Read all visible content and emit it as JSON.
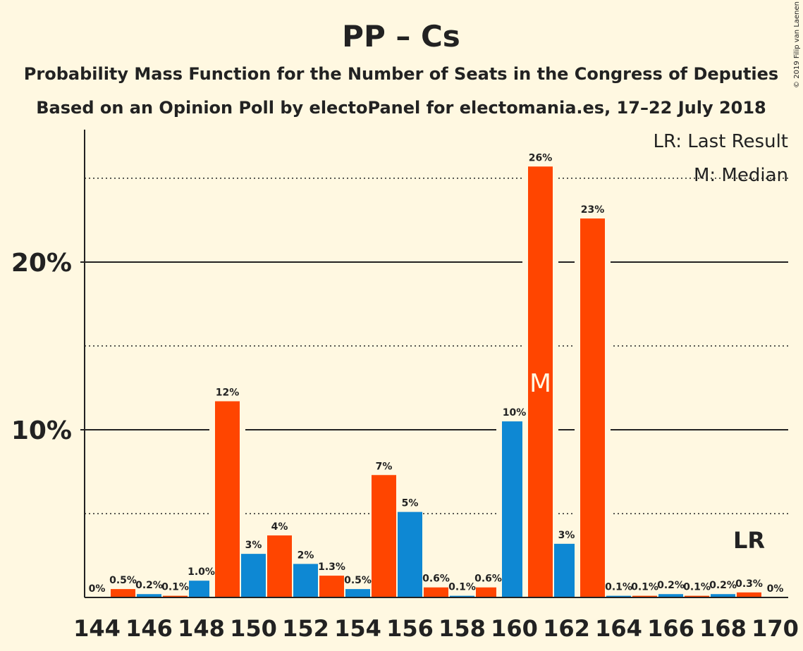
{
  "chart_data": {
    "type": "bar",
    "title": "PP – Cs",
    "subtitle1": "Probability Mass Function for the Number of Seats in the Congress of Deputies",
    "subtitle2": "Based on an Opinion Poll by electoPanel for electomania.es, 17–22 July 2018",
    "copyright": "© 2019 Filip van Laenen",
    "legend": {
      "lr": "LR: Last Result",
      "median": "M: Median"
    },
    "yticks": [
      {
        "value": 10,
        "label": "10%"
      },
      {
        "value": 20,
        "label": "20%"
      }
    ],
    "dotted_gridlines": [
      5,
      15,
      25
    ],
    "ylim": [
      0,
      28
    ],
    "xticks": [
      144,
      146,
      148,
      150,
      152,
      154,
      156,
      158,
      160,
      162,
      164,
      166,
      168,
      170
    ],
    "median_seat": 161,
    "median_label": "M",
    "last_result_seat": 169,
    "last_result_label": "LR",
    "colors": {
      "blue": "#0e88d3",
      "orange": "#ff4500",
      "background": "#fff8e1"
    },
    "bars": [
      {
        "x": 144,
        "value": 0.0,
        "label": "0%"
      },
      {
        "x": 145,
        "value": 0.5,
        "label": "0.5%"
      },
      {
        "x": 146,
        "value": 0.2,
        "label": "0.2%"
      },
      {
        "x": 147,
        "value": 0.1,
        "label": "0.1%"
      },
      {
        "x": 148,
        "value": 1.0,
        "label": "1.0%"
      },
      {
        "x": 149,
        "value": 11.7,
        "label": "12%"
      },
      {
        "x": 150,
        "value": 2.6,
        "label": "3%"
      },
      {
        "x": 151,
        "value": 3.7,
        "label": "4%"
      },
      {
        "x": 152,
        "value": 2.0,
        "label": "2%"
      },
      {
        "x": 153,
        "value": 1.3,
        "label": "1.3%"
      },
      {
        "x": 154,
        "value": 0.5,
        "label": "0.5%"
      },
      {
        "x": 155,
        "value": 7.3,
        "label": "7%"
      },
      {
        "x": 156,
        "value": 5.1,
        "label": "5%"
      },
      {
        "x": 157,
        "value": 0.6,
        "label": "0.6%"
      },
      {
        "x": 158,
        "value": 0.1,
        "label": "0.1%"
      },
      {
        "x": 159,
        "value": 0.6,
        "label": "0.6%"
      },
      {
        "x": 160,
        "value": 10.5,
        "label": "10%"
      },
      {
        "x": 161,
        "value": 25.7,
        "label": "26%"
      },
      {
        "x": 162,
        "value": 3.2,
        "label": "3%"
      },
      {
        "x": 163,
        "value": 22.6,
        "label": "23%"
      },
      {
        "x": 164,
        "value": 0.1,
        "label": "0.1%"
      },
      {
        "x": 165,
        "value": 0.1,
        "label": "0.1%"
      },
      {
        "x": 166,
        "value": 0.2,
        "label": "0.2%"
      },
      {
        "x": 167,
        "value": 0.1,
        "label": "0.1%"
      },
      {
        "x": 168,
        "value": 0.2,
        "label": "0.2%"
      },
      {
        "x": 169,
        "value": 0.3,
        "label": "0.3%"
      },
      {
        "x": 170,
        "value": 0.0,
        "label": "0%"
      }
    ]
  }
}
